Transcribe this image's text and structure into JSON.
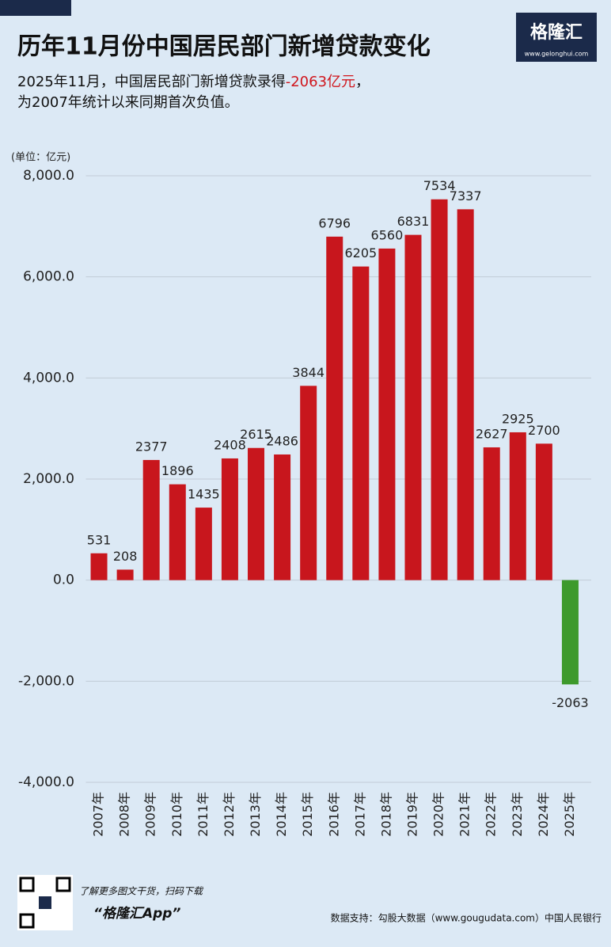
{
  "chart_data": {
    "type": "bar",
    "title": "历年11月份中国居民部门新增贷款变化",
    "subtitle": [
      "2025年11月，中国居民部门新增贷款录得",
      "-2063亿元",
      "，"
    ],
    "subtitle_line2": "为2007年统计以来同期首次负值。",
    "y_axis_label": "(单位：亿元)",
    "categories": [
      "2007年",
      "2008年",
      "2009年",
      "2010年",
      "2011年",
      "2012年",
      "2013年",
      "2014年",
      "2015年",
      "2016年",
      "2017年",
      "2018年",
      "2019年",
      "2020年",
      "2021年",
      "2022年",
      "2023年",
      "2024年",
      "2025年"
    ],
    "values": [
      531,
      208,
      2377,
      1896,
      1435,
      2408,
      2615,
      2486,
      3844,
      6796,
      6205,
      6560,
      6831,
      7534,
      7337,
      2627,
      2925,
      2700,
      -2063
    ],
    "color": "#c8161d",
    "negative_color": "#3e9a2c",
    "ylim": [
      -4000,
      8000
    ],
    "yticks": [
      {
        "value": -4000,
        "label": "-4,000.0"
      },
      {
        "value": -2000,
        "label": "-2,000.0"
      },
      {
        "value": 0,
        "label": "0.0"
      },
      {
        "value": 2000,
        "label": "2,000.0"
      },
      {
        "value": 4000,
        "label": "4,000.0"
      },
      {
        "value": 6000,
        "label": "6,000.0"
      },
      {
        "value": 8000,
        "label": "8,000.0"
      }
    ],
    "grid": true
  },
  "logo": {
    "name": "格隆汇",
    "url": "www.gelonghui.com"
  },
  "footer": {
    "promo": "了解更多图文干货，扫码下载",
    "app": "“格隆汇App”",
    "source": "数据支持：勾股大数据（www.gougudata.com）中国人民银行"
  }
}
